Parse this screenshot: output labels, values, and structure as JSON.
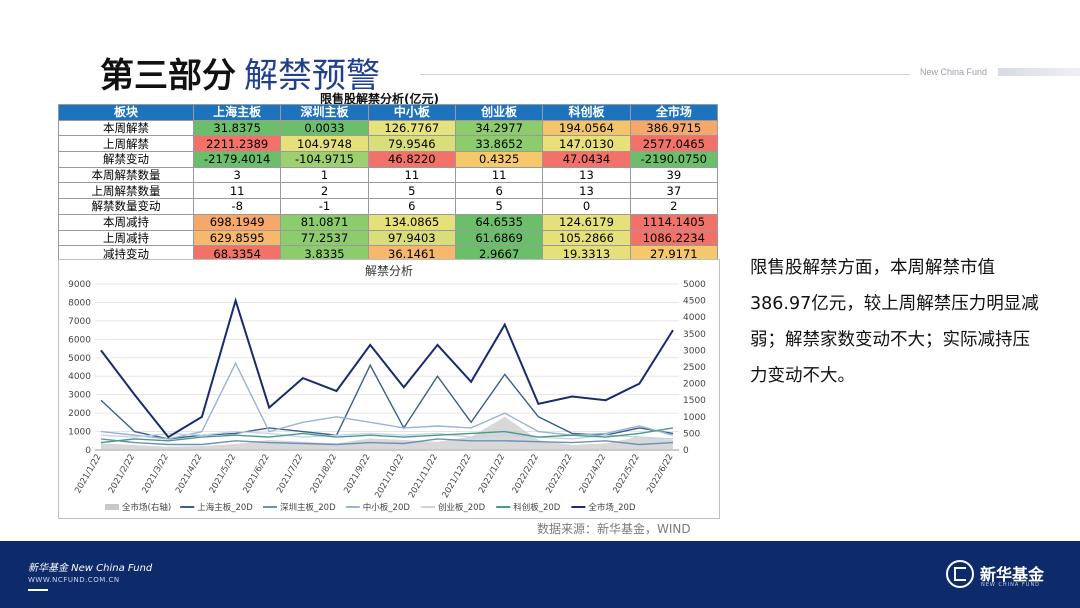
{
  "header": {
    "title": "第三部分",
    "subtitle": "解禁预警",
    "brand": "New China Fund"
  },
  "table": {
    "caption": "限售股解禁分析(亿元)",
    "columns": [
      "板块",
      "上海主板",
      "深圳主板",
      "中小板",
      "创业板",
      "科创板",
      "全市场"
    ],
    "rows": [
      {
        "label": "本周解禁",
        "values": [
          "31.8375",
          "0.0033",
          "126.7767",
          "34.2977",
          "194.0564",
          "386.9715"
        ],
        "colors": [
          "#6cbf6a",
          "#6cbf6a",
          "#e7e37c",
          "#8ccc6c",
          "#f4c46c",
          "#f6a86c"
        ]
      },
      {
        "label": "上周解禁",
        "values": [
          "2211.2389",
          "104.9748",
          "79.9546",
          "33.8652",
          "147.0130",
          "2577.0465"
        ],
        "colors": [
          "#f2726a",
          "#e5e07a",
          "#d9de7a",
          "#8ccc6c",
          "#e9e07c",
          "#f2726a"
        ]
      },
      {
        "label": "解禁变动",
        "values": [
          "-2179.4014",
          "-104.9715",
          "46.8220",
          "0.4325",
          "47.0434",
          "-2190.0750"
        ],
        "colors": [
          "#6cbf6a",
          "#9dd06e",
          "#f2726a",
          "#f6c86c",
          "#f2726a",
          "#6cbf6a"
        ]
      },
      {
        "label": "本周解禁数量",
        "values": [
          "3",
          "1",
          "11",
          "11",
          "13",
          "39"
        ],
        "colors": [
          "#ffffff",
          "#ffffff",
          "#ffffff",
          "#ffffff",
          "#ffffff",
          "#ffffff"
        ]
      },
      {
        "label": "上周解禁数量",
        "values": [
          "11",
          "2",
          "5",
          "6",
          "13",
          "37"
        ],
        "colors": [
          "#ffffff",
          "#ffffff",
          "#ffffff",
          "#ffffff",
          "#ffffff",
          "#ffffff"
        ]
      },
      {
        "label": "解禁数量变动",
        "values": [
          "-8",
          "-1",
          "6",
          "5",
          "0",
          "2"
        ],
        "colors": [
          "#ffffff",
          "#ffffff",
          "#ffffff",
          "#ffffff",
          "#ffffff",
          "#ffffff"
        ]
      },
      {
        "label": "本周减持",
        "values": [
          "698.1949",
          "81.0871",
          "134.0865",
          "64.6535",
          "124.6179",
          "1114.1405"
        ],
        "colors": [
          "#f6a86c",
          "#8ccc6c",
          "#e5e07a",
          "#6cbf6a",
          "#e5e07a",
          "#f2726a"
        ]
      },
      {
        "label": "上周减持",
        "values": [
          "629.8595",
          "77.2537",
          "97.9403",
          "61.6869",
          "105.2866",
          "1086.2234"
        ],
        "colors": [
          "#f6b86c",
          "#8ccc6c",
          "#d9de7a",
          "#6cbf6a",
          "#e5e07a",
          "#f2726a"
        ]
      },
      {
        "label": "减持变动",
        "values": [
          "68.3354",
          "3.8335",
          "36.1461",
          "2.9667",
          "19.3313",
          "27.9171"
        ],
        "colors": [
          "#f2726a",
          "#8ccc6c",
          "#f6b86c",
          "#6cbf6a",
          "#e5e07a",
          "#f6c86c"
        ]
      }
    ]
  },
  "chart_data": {
    "type": "line",
    "title": "解禁分析",
    "x": [
      "2021/1/22",
      "2021/2/22",
      "2021/3/22",
      "2021/4/22",
      "2021/5/22",
      "2021/6/22",
      "2021/7/22",
      "2021/8/22",
      "2021/9/22",
      "2021/10/22",
      "2021/11/22",
      "2021/12/22",
      "2022/1/22",
      "2022/2/22",
      "2022/3/22",
      "2022/4/22",
      "2022/5/22",
      "2022/6/22"
    ],
    "y_left_ticks": [
      "0",
      "1000",
      "2000",
      "3000",
      "4000",
      "5000",
      "6000",
      "7000",
      "8000",
      "9000"
    ],
    "y_right_ticks": [
      "0",
      "500",
      "1000",
      "1500",
      "2000",
      "2500",
      "3000",
      "3500",
      "4000",
      "4500",
      "5000"
    ],
    "ylim_left": [
      0,
      9000
    ],
    "ylim_right": [
      0,
      5000
    ],
    "legend_position": "bottom",
    "series": [
      {
        "name": "全市场(右轴)",
        "axis": "right",
        "style": "area",
        "color": "#c8c8c8",
        "values": [
          200,
          150,
          100,
          120,
          180,
          300,
          250,
          200,
          350,
          300,
          250,
          400,
          1000,
          300,
          150,
          200,
          400,
          300
        ]
      },
      {
        "name": "上海主板_20D",
        "axis": "left",
        "color": "#3b5f8f",
        "values": [
          2700,
          1000,
          600,
          800,
          900,
          1200,
          1000,
          800,
          4600,
          1200,
          4000,
          1500,
          4100,
          1800,
          900,
          800,
          1200,
          900
        ]
      },
      {
        "name": "深圳主板_20D",
        "axis": "left",
        "color": "#6f8fb8",
        "values": [
          600,
          400,
          300,
          300,
          500,
          400,
          350,
          300,
          400,
          350,
          600,
          500,
          500,
          450,
          400,
          500,
          300,
          400
        ]
      },
      {
        "name": "中小板_20D",
        "axis": "left",
        "color": "#9ab2d4",
        "values": [
          1000,
          800,
          600,
          1000,
          4700,
          1000,
          1500,
          1800,
          1500,
          1200,
          1300,
          1200,
          2000,
          1000,
          800,
          900,
          1300,
          800
        ]
      },
      {
        "name": "创业板_20D",
        "axis": "left",
        "color": "#c6d4e8",
        "values": [
          800,
          700,
          900,
          800,
          1000,
          900,
          700,
          800,
          900,
          800,
          900,
          700,
          800,
          700,
          600,
          800,
          700,
          600
        ]
      },
      {
        "name": "科创板_20D",
        "axis": "left",
        "color": "#4a9a8a",
        "values": [
          400,
          600,
          500,
          700,
          800,
          700,
          900,
          700,
          800,
          700,
          800,
          900,
          1000,
          700,
          800,
          700,
          900,
          1200
        ]
      },
      {
        "name": "全市场_20D",
        "axis": "left",
        "color": "#1a2a6e",
        "values": [
          5400,
          3000,
          700,
          1800,
          8100,
          2300,
          3900,
          3200,
          5700,
          3400,
          5700,
          3700,
          6800,
          2500,
          2900,
          2700,
          3600,
          6500
        ]
      }
    ]
  },
  "source": "数据来源：新华基金，WIND",
  "note": "限售股解禁方面，本周解禁市值386.97亿元，较上周解禁压力明显减弱；解禁家数变动不大；实际减持压力变动不大。",
  "footer": {
    "cn": "新华基金 New China Fund",
    "url": "WWW.NCFUND.COM.CN",
    "logo_text": "新华基金"
  }
}
